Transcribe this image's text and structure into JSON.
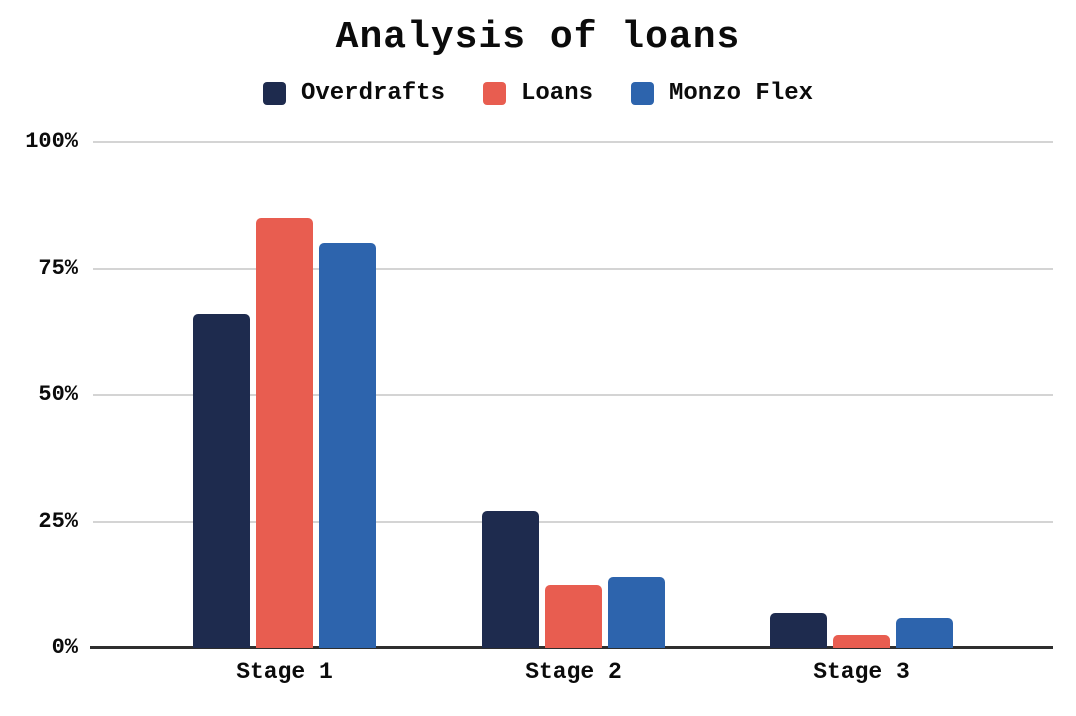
{
  "title": "Analysis of loans",
  "legend": {
    "position": "top",
    "items": [
      {
        "label": "Overdrafts",
        "color": "#1e2b4e"
      },
      {
        "label": "Loans",
        "color": "#e85d50"
      },
      {
        "label": "Monzo Flex",
        "color": "#2d64ad"
      }
    ]
  },
  "chart_data": {
    "type": "bar",
    "title": "Analysis of loans",
    "categories": [
      "Stage 1",
      "Stage 2",
      "Stage 3"
    ],
    "series": [
      {
        "name": "Overdrafts",
        "color": "#1e2b4e",
        "values": [
          66,
          27,
          7
        ]
      },
      {
        "name": "Loans",
        "color": "#e85d50",
        "values": [
          85,
          12.5,
          2.5
        ]
      },
      {
        "name": "Monzo Flex",
        "color": "#2d64ad",
        "values": [
          80,
          14,
          6
        ]
      }
    ],
    "xlabel": "",
    "ylabel": "",
    "ylim": [
      0,
      100
    ],
    "ytick_labels": [
      "0%",
      "25%",
      "50%",
      "75%",
      "100%"
    ],
    "ytick_values": [
      0,
      25,
      50,
      75,
      100
    ],
    "grid": true,
    "gridline_color": "#d4d4d4",
    "axis_line_color": "#2e2e2e",
    "background_color": "#ffffff",
    "legend_position": "top"
  }
}
